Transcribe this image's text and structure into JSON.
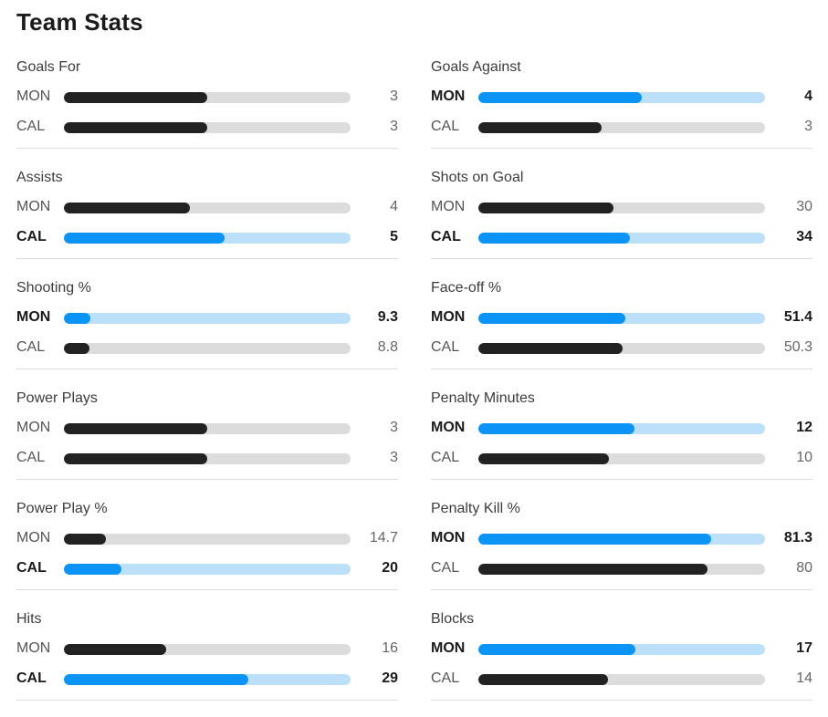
{
  "title": "Team Stats",
  "colors": {
    "leader_fill": "#0b93f5",
    "leader_track": "#bde0fa",
    "other_fill": "#222222",
    "other_track": "#dcdcdc"
  },
  "stats": [
    {
      "label": "Goals For",
      "rows": [
        {
          "team": "MON",
          "value": "3",
          "fill_fraction": 0.5,
          "leader": false
        },
        {
          "team": "CAL",
          "value": "3",
          "fill_fraction": 0.5,
          "leader": false
        }
      ]
    },
    {
      "label": "Goals Against",
      "rows": [
        {
          "team": "MON",
          "value": "4",
          "fill_fraction": 0.57,
          "leader": true
        },
        {
          "team": "CAL",
          "value": "3",
          "fill_fraction": 0.43,
          "leader": false
        }
      ]
    },
    {
      "label": "Assists",
      "rows": [
        {
          "team": "MON",
          "value": "4",
          "fill_fraction": 0.44,
          "leader": false
        },
        {
          "team": "CAL",
          "value": "5",
          "fill_fraction": 0.56,
          "leader": true
        }
      ]
    },
    {
      "label": "Shots on Goal",
      "rows": [
        {
          "team": "MON",
          "value": "30",
          "fill_fraction": 0.47,
          "leader": false
        },
        {
          "team": "CAL",
          "value": "34",
          "fill_fraction": 0.53,
          "leader": true
        }
      ]
    },
    {
      "label": "Shooting %",
      "rows": [
        {
          "team": "MON",
          "value": "9.3",
          "fill_fraction": 0.093,
          "leader": true
        },
        {
          "team": "CAL",
          "value": "8.8",
          "fill_fraction": 0.088,
          "leader": false
        }
      ]
    },
    {
      "label": "Face-off %",
      "rows": [
        {
          "team": "MON",
          "value": "51.4",
          "fill_fraction": 0.514,
          "leader": true
        },
        {
          "team": "CAL",
          "value": "50.3",
          "fill_fraction": 0.503,
          "leader": false
        }
      ]
    },
    {
      "label": "Power Plays",
      "rows": [
        {
          "team": "MON",
          "value": "3",
          "fill_fraction": 0.5,
          "leader": false
        },
        {
          "team": "CAL",
          "value": "3",
          "fill_fraction": 0.5,
          "leader": false
        }
      ]
    },
    {
      "label": "Penalty Minutes",
      "rows": [
        {
          "team": "MON",
          "value": "12",
          "fill_fraction": 0.545,
          "leader": true
        },
        {
          "team": "CAL",
          "value": "10",
          "fill_fraction": 0.455,
          "leader": false
        }
      ]
    },
    {
      "label": "Power Play %",
      "rows": [
        {
          "team": "MON",
          "value": "14.7",
          "fill_fraction": 0.147,
          "leader": false
        },
        {
          "team": "CAL",
          "value": "20",
          "fill_fraction": 0.2,
          "leader": true
        }
      ]
    },
    {
      "label": "Penalty Kill %",
      "rows": [
        {
          "team": "MON",
          "value": "81.3",
          "fill_fraction": 0.813,
          "leader": true
        },
        {
          "team": "CAL",
          "value": "80",
          "fill_fraction": 0.8,
          "leader": false
        }
      ]
    },
    {
      "label": "Hits",
      "rows": [
        {
          "team": "MON",
          "value": "16",
          "fill_fraction": 0.356,
          "leader": false
        },
        {
          "team": "CAL",
          "value": "29",
          "fill_fraction": 0.644,
          "leader": true
        }
      ]
    },
    {
      "label": "Blocks",
      "rows": [
        {
          "team": "MON",
          "value": "17",
          "fill_fraction": 0.548,
          "leader": true
        },
        {
          "team": "CAL",
          "value": "14",
          "fill_fraction": 0.452,
          "leader": false
        }
      ]
    }
  ]
}
